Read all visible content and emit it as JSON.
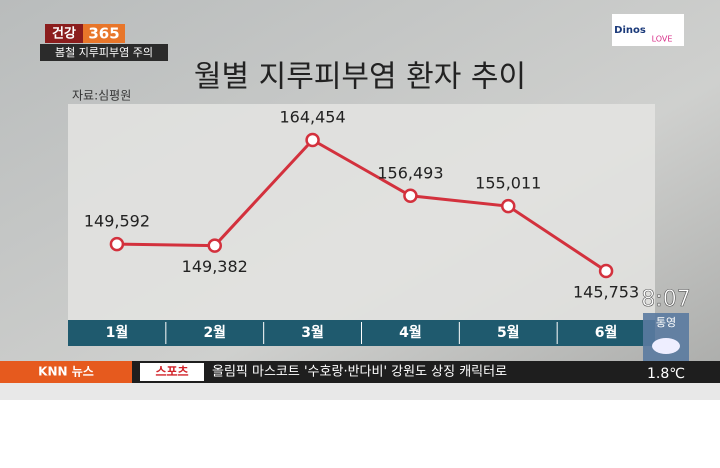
{
  "chart_data": {
    "type": "line",
    "title": "월별 지루피부염 환자 추이",
    "source": "자료:심평원",
    "categories": [
      "1월",
      "2월",
      "3월",
      "4월",
      "5월",
      "6월"
    ],
    "series": [
      {
        "color": "#d3313d",
        "values": [
          149592,
          149382,
          164454,
          156493,
          155011,
          145753
        ],
        "value_labels": [
          "149,592",
          "149,382",
          "164,454",
          "156,493",
          "155,011",
          "145,753"
        ]
      }
    ]
  },
  "broadcast": {
    "program": "건강",
    "program_number": "365",
    "topic": "봄철 지루피부염 주의",
    "logo": "Dinos",
    "logo_tag": "LOVE",
    "time": "8:07",
    "city": "통영",
    "temperature": "1.8℃",
    "ticker_channel": "KNN 뉴스",
    "ticker_section": "스포츠",
    "ticker_text": "올림픽 마스코트 '수호랑·반다비' 강원도 상징 캐릭터로"
  }
}
